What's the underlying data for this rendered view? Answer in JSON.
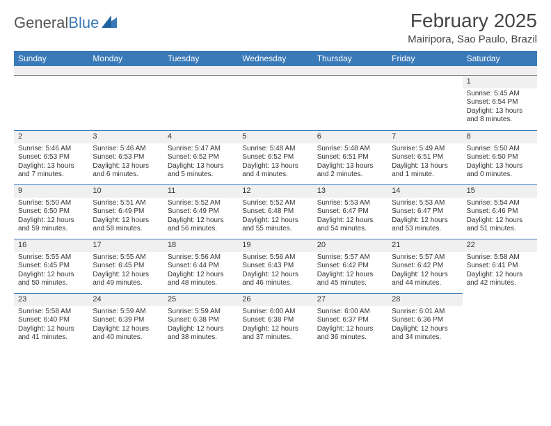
{
  "brand": {
    "name_a": "General",
    "name_b": "Blue"
  },
  "title": "February 2025",
  "location": "Mairipora, Sao Paulo, Brazil",
  "header_bg": "#3a7ab8",
  "header_text": "#ffffff",
  "daynum_bg": "#f0f0f0",
  "cell_border": "#3a7ab8",
  "page_bg": "#ffffff",
  "weekdays": [
    "Sunday",
    "Monday",
    "Tuesday",
    "Wednesday",
    "Thursday",
    "Friday",
    "Saturday"
  ],
  "weeks": [
    [
      null,
      null,
      null,
      null,
      null,
      null,
      {
        "n": "1",
        "sr": "Sunrise: 5:45 AM",
        "ss": "Sunset: 6:54 PM",
        "d1": "Daylight: 13 hours",
        "d2": "and 8 minutes."
      }
    ],
    [
      {
        "n": "2",
        "sr": "Sunrise: 5:46 AM",
        "ss": "Sunset: 6:53 PM",
        "d1": "Daylight: 13 hours",
        "d2": "and 7 minutes."
      },
      {
        "n": "3",
        "sr": "Sunrise: 5:46 AM",
        "ss": "Sunset: 6:53 PM",
        "d1": "Daylight: 13 hours",
        "d2": "and 6 minutes."
      },
      {
        "n": "4",
        "sr": "Sunrise: 5:47 AM",
        "ss": "Sunset: 6:52 PM",
        "d1": "Daylight: 13 hours",
        "d2": "and 5 minutes."
      },
      {
        "n": "5",
        "sr": "Sunrise: 5:48 AM",
        "ss": "Sunset: 6:52 PM",
        "d1": "Daylight: 13 hours",
        "d2": "and 4 minutes."
      },
      {
        "n": "6",
        "sr": "Sunrise: 5:48 AM",
        "ss": "Sunset: 6:51 PM",
        "d1": "Daylight: 13 hours",
        "d2": "and 2 minutes."
      },
      {
        "n": "7",
        "sr": "Sunrise: 5:49 AM",
        "ss": "Sunset: 6:51 PM",
        "d1": "Daylight: 13 hours",
        "d2": "and 1 minute."
      },
      {
        "n": "8",
        "sr": "Sunrise: 5:50 AM",
        "ss": "Sunset: 6:50 PM",
        "d1": "Daylight: 13 hours",
        "d2": "and 0 minutes."
      }
    ],
    [
      {
        "n": "9",
        "sr": "Sunrise: 5:50 AM",
        "ss": "Sunset: 6:50 PM",
        "d1": "Daylight: 12 hours",
        "d2": "and 59 minutes."
      },
      {
        "n": "10",
        "sr": "Sunrise: 5:51 AM",
        "ss": "Sunset: 6:49 PM",
        "d1": "Daylight: 12 hours",
        "d2": "and 58 minutes."
      },
      {
        "n": "11",
        "sr": "Sunrise: 5:52 AM",
        "ss": "Sunset: 6:49 PM",
        "d1": "Daylight: 12 hours",
        "d2": "and 56 minutes."
      },
      {
        "n": "12",
        "sr": "Sunrise: 5:52 AM",
        "ss": "Sunset: 6:48 PM",
        "d1": "Daylight: 12 hours",
        "d2": "and 55 minutes."
      },
      {
        "n": "13",
        "sr": "Sunrise: 5:53 AM",
        "ss": "Sunset: 6:47 PM",
        "d1": "Daylight: 12 hours",
        "d2": "and 54 minutes."
      },
      {
        "n": "14",
        "sr": "Sunrise: 5:53 AM",
        "ss": "Sunset: 6:47 PM",
        "d1": "Daylight: 12 hours",
        "d2": "and 53 minutes."
      },
      {
        "n": "15",
        "sr": "Sunrise: 5:54 AM",
        "ss": "Sunset: 6:46 PM",
        "d1": "Daylight: 12 hours",
        "d2": "and 51 minutes."
      }
    ],
    [
      {
        "n": "16",
        "sr": "Sunrise: 5:55 AM",
        "ss": "Sunset: 6:45 PM",
        "d1": "Daylight: 12 hours",
        "d2": "and 50 minutes."
      },
      {
        "n": "17",
        "sr": "Sunrise: 5:55 AM",
        "ss": "Sunset: 6:45 PM",
        "d1": "Daylight: 12 hours",
        "d2": "and 49 minutes."
      },
      {
        "n": "18",
        "sr": "Sunrise: 5:56 AM",
        "ss": "Sunset: 6:44 PM",
        "d1": "Daylight: 12 hours",
        "d2": "and 48 minutes."
      },
      {
        "n": "19",
        "sr": "Sunrise: 5:56 AM",
        "ss": "Sunset: 6:43 PM",
        "d1": "Daylight: 12 hours",
        "d2": "and 46 minutes."
      },
      {
        "n": "20",
        "sr": "Sunrise: 5:57 AM",
        "ss": "Sunset: 6:42 PM",
        "d1": "Daylight: 12 hours",
        "d2": "and 45 minutes."
      },
      {
        "n": "21",
        "sr": "Sunrise: 5:57 AM",
        "ss": "Sunset: 6:42 PM",
        "d1": "Daylight: 12 hours",
        "d2": "and 44 minutes."
      },
      {
        "n": "22",
        "sr": "Sunrise: 5:58 AM",
        "ss": "Sunset: 6:41 PM",
        "d1": "Daylight: 12 hours",
        "d2": "and 42 minutes."
      }
    ],
    [
      {
        "n": "23",
        "sr": "Sunrise: 5:58 AM",
        "ss": "Sunset: 6:40 PM",
        "d1": "Daylight: 12 hours",
        "d2": "and 41 minutes."
      },
      {
        "n": "24",
        "sr": "Sunrise: 5:59 AM",
        "ss": "Sunset: 6:39 PM",
        "d1": "Daylight: 12 hours",
        "d2": "and 40 minutes."
      },
      {
        "n": "25",
        "sr": "Sunrise: 5:59 AM",
        "ss": "Sunset: 6:38 PM",
        "d1": "Daylight: 12 hours",
        "d2": "and 38 minutes."
      },
      {
        "n": "26",
        "sr": "Sunrise: 6:00 AM",
        "ss": "Sunset: 6:38 PM",
        "d1": "Daylight: 12 hours",
        "d2": "and 37 minutes."
      },
      {
        "n": "27",
        "sr": "Sunrise: 6:00 AM",
        "ss": "Sunset: 6:37 PM",
        "d1": "Daylight: 12 hours",
        "d2": "and 36 minutes."
      },
      {
        "n": "28",
        "sr": "Sunrise: 6:01 AM",
        "ss": "Sunset: 6:36 PM",
        "d1": "Daylight: 12 hours",
        "d2": "and 34 minutes."
      },
      null
    ]
  ]
}
